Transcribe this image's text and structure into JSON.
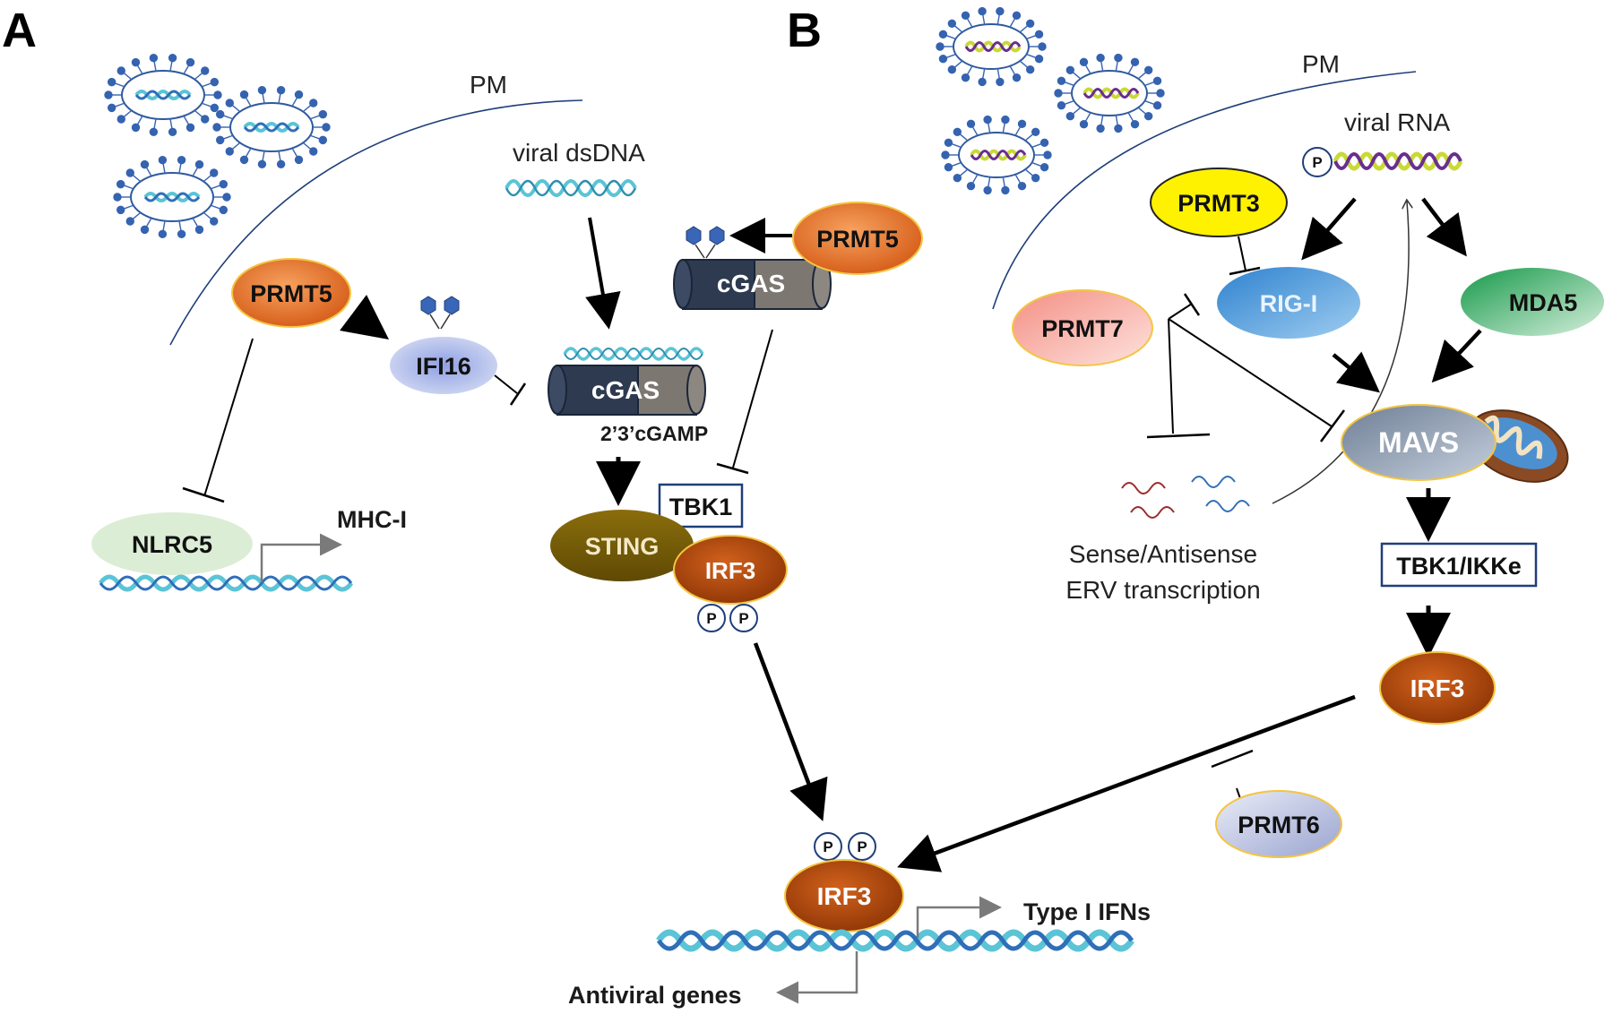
{
  "panels": {
    "a": "A",
    "b": "B"
  },
  "panel_a": {
    "pm": "PM",
    "viral_dsdna": "viral dsDNA",
    "prmt5_left": "PRMT5",
    "prmt5_right": "PRMT5",
    "ifi16": "IFI16",
    "cgas_top": "cGAS",
    "cgas_middle": "cGAS",
    "cgamp": "2’3’cGAMP",
    "tbk1": "TBK1",
    "sting": "STING",
    "irf3_complex": "IRF3",
    "nlrc5": "NLRC5",
    "mhc_i": "MHC-I",
    "irf3_nuclear": "IRF3",
    "type_i_ifns": "Type I IFNs",
    "antiviral_genes": "Antiviral genes",
    "phospho": "P"
  },
  "panel_b": {
    "pm": "PM",
    "viral_rna": "viral RNA",
    "prmt3": "PRMT3",
    "rig_i": "RIG-I",
    "mda5": "MDA5",
    "prmt7": "PRMT7",
    "mavs": "MAVS",
    "sense_line1": "Sense/Antisense",
    "sense_line2": "ERV transcription",
    "tbk1_ikke": "TBK1/IKKe",
    "irf3": "IRF3",
    "prmt6": "PRMT6",
    "phospho": "P"
  },
  "colors": {
    "prmt5_orange": "#e8732a",
    "irf3_brown": "#b34a0c",
    "sting_olive": "#7a5f06",
    "ifi16_lavender": "#b9c3ea",
    "cgas_dark": "#2e3a4f",
    "cgas_grey": "#7d7772",
    "dna_cyan": "#5bc4d6",
    "dna_blue": "#2f6fb8",
    "prmt3_yellow": "#fff200",
    "rig_i_blue": "#4a97d8",
    "mda5_green": "#2fae5e",
    "prmt7_pink": "#f7a9a0",
    "mavs_grey": "#8d9bb0",
    "prmt6_lilac": "#bcc3e0",
    "nlrc5_green": "#dcedd6",
    "membrane": "#1f3f7a"
  }
}
